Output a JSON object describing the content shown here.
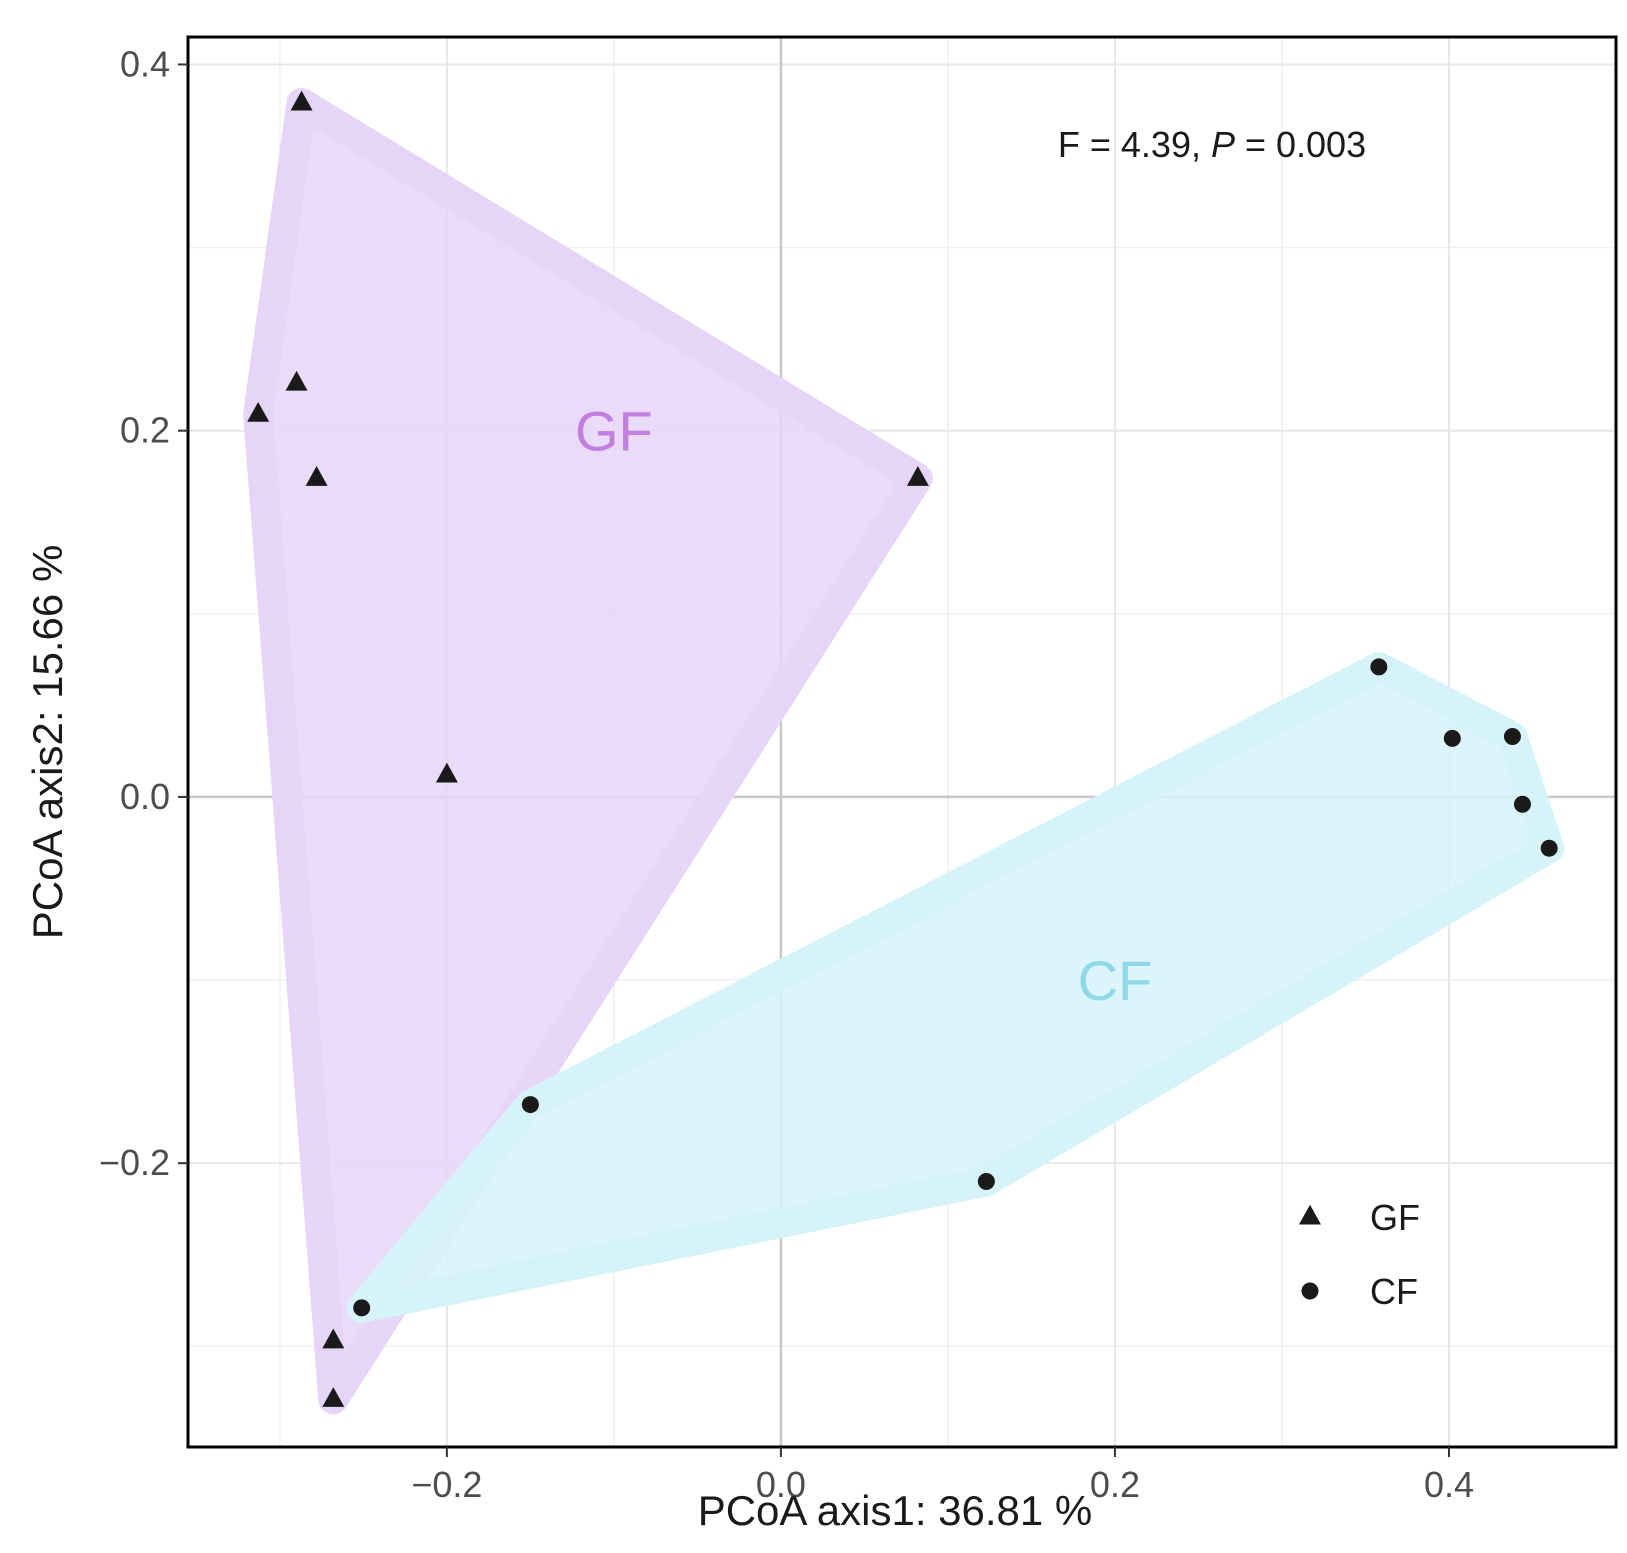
{
  "chart_data": {
    "type": "scatter",
    "title": "",
    "xlabel": "PCoA axis1: 36.81 %",
    "ylabel": "PCoA axis2: 15.66 %",
    "xlim": [
      -0.355,
      0.5
    ],
    "ylim": [
      -0.355,
      0.415
    ],
    "xticks": [
      -0.2,
      0.0,
      0.2,
      0.4
    ],
    "yticks": [
      -0.2,
      0.0,
      0.2,
      0.4
    ],
    "xtick_labels": [
      "−0.2",
      "0.0",
      "0.2",
      "0.4"
    ],
    "ytick_labels": [
      "−0.2",
      "0.0",
      "0.2",
      "0.4"
    ],
    "grid": true,
    "zero_lines": true,
    "annotation": {
      "prefix": "F = 4.39, ",
      "italic": "P",
      "suffix": " = 0.003"
    },
    "legend": {
      "position": "bottom-right",
      "entries": [
        {
          "label": "GF",
          "marker": "triangle"
        },
        {
          "label": "CF",
          "marker": "circle"
        }
      ]
    },
    "series": [
      {
        "name": "GF",
        "marker": "triangle",
        "hull_color": "#e6d5f7",
        "label_color": "#c37fe0",
        "points": [
          {
            "x": -0.287,
            "y": 0.379
          },
          {
            "x": -0.29,
            "y": 0.226
          },
          {
            "x": -0.313,
            "y": 0.209
          },
          {
            "x": -0.278,
            "y": 0.174
          },
          {
            "x": 0.082,
            "y": 0.174
          },
          {
            "x": -0.2,
            "y": 0.012
          },
          {
            "x": -0.268,
            "y": -0.297
          },
          {
            "x": -0.268,
            "y": -0.329
          }
        ],
        "hull": [
          {
            "x": -0.287,
            "y": 0.379
          },
          {
            "x": 0.082,
            "y": 0.174
          },
          {
            "x": -0.268,
            "y": -0.329
          },
          {
            "x": -0.313,
            "y": 0.209
          }
        ],
        "label_pos": {
          "x": -0.1,
          "y": 0.2
        }
      },
      {
        "name": "CF",
        "marker": "circle",
        "hull_color": "#d6f3fa",
        "label_color": "#8fd8e8",
        "points": [
          {
            "x": 0.358,
            "y": 0.071
          },
          {
            "x": 0.402,
            "y": 0.032
          },
          {
            "x": 0.438,
            "y": 0.033
          },
          {
            "x": 0.444,
            "y": -0.004
          },
          {
            "x": 0.46,
            "y": -0.028
          },
          {
            "x": -0.15,
            "y": -0.168
          },
          {
            "x": 0.123,
            "y": -0.21
          },
          {
            "x": -0.251,
            "y": -0.279
          }
        ],
        "hull": [
          {
            "x": 0.358,
            "y": 0.071
          },
          {
            "x": 0.438,
            "y": 0.033
          },
          {
            "x": 0.46,
            "y": -0.028
          },
          {
            "x": 0.123,
            "y": -0.21
          },
          {
            "x": -0.251,
            "y": -0.279
          },
          {
            "x": -0.15,
            "y": -0.168
          }
        ],
        "label_pos": {
          "x": 0.2,
          "y": -0.1
        }
      }
    ]
  }
}
